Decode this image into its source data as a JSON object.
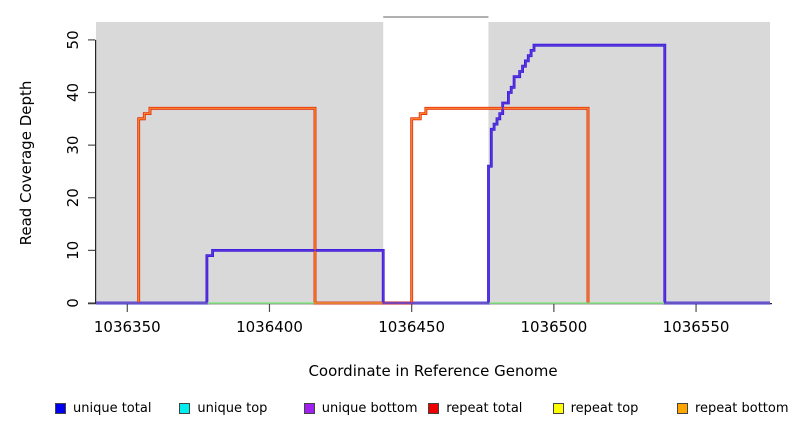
{
  "chart_data": {
    "type": "line",
    "title": "",
    "xlabel": "Coordinate in Reference Genome",
    "ylabel": "Read Coverage Depth",
    "xlim": [
      1036339,
      1036576
    ],
    "ylim": [
      0,
      53.4
    ],
    "x_ticks": [
      1036350,
      1036400,
      1036450,
      1036500,
      1036550
    ],
    "y_ticks": [
      0,
      10,
      20,
      30,
      40,
      50
    ],
    "grid": false,
    "legend_position": "bottom",
    "plot_background": "#d9d9d9",
    "highlight_region": {
      "x": [
        1036440,
        1036477
      ],
      "color": "#ffffff",
      "border_top_color": "#808080"
    },
    "series": [
      {
        "name": "unique total",
        "color": "#0000ee",
        "stroke": "#2a18dd",
        "width": 2.8,
        "points": [
          [
            1036339,
            0
          ],
          [
            1036378,
            0
          ],
          [
            1036378,
            9
          ],
          [
            1036380,
            9
          ],
          [
            1036380,
            10
          ],
          [
            1036440,
            10
          ],
          [
            1036440,
            0
          ],
          [
            1036477,
            0
          ],
          [
            1036477,
            26
          ],
          [
            1036478,
            26
          ],
          [
            1036478,
            33
          ],
          [
            1036479,
            33
          ],
          [
            1036479,
            34
          ],
          [
            1036480,
            34
          ],
          [
            1036480,
            35
          ],
          [
            1036481,
            35
          ],
          [
            1036481,
            36
          ],
          [
            1036482,
            36
          ],
          [
            1036482,
            38
          ],
          [
            1036484,
            38
          ],
          [
            1036484,
            40
          ],
          [
            1036485,
            40
          ],
          [
            1036485,
            41
          ],
          [
            1036486,
            41
          ],
          [
            1036486,
            43
          ],
          [
            1036488,
            43
          ],
          [
            1036488,
            44
          ],
          [
            1036489,
            44
          ],
          [
            1036489,
            45
          ],
          [
            1036490,
            45
          ],
          [
            1036490,
            46
          ],
          [
            1036491,
            46
          ],
          [
            1036491,
            47
          ],
          [
            1036492,
            47
          ],
          [
            1036492,
            48
          ],
          [
            1036493,
            48
          ],
          [
            1036493,
            49
          ],
          [
            1036539,
            49
          ],
          [
            1036539,
            0
          ],
          [
            1036576,
            0
          ]
        ]
      },
      {
        "name": "repeat top",
        "color": "#ffff00",
        "stroke": "#ffff00",
        "width": 1.5,
        "points": [
          [
            1036339,
            0
          ],
          [
            1036576,
            0
          ]
        ]
      },
      {
        "name": "repeat total",
        "color": "#ee0000",
        "stroke": "#dd1100",
        "width": 2.8,
        "points": [
          [
            1036354,
            0
          ],
          [
            1036354,
            35
          ],
          [
            1036356,
            35
          ],
          [
            1036356,
            36
          ],
          [
            1036358,
            36
          ],
          [
            1036358,
            37
          ],
          [
            1036416,
            37
          ],
          [
            1036416,
            0
          ],
          [
            1036450,
            0
          ],
          [
            1036450,
            35
          ],
          [
            1036453,
            35
          ],
          [
            1036453,
            36
          ],
          [
            1036455,
            36
          ],
          [
            1036455,
            37
          ],
          [
            1036512,
            37
          ],
          [
            1036512,
            0
          ]
        ]
      },
      {
        "name": "unique top",
        "color": "#00eeee",
        "stroke": "#7fdfa6",
        "width": 1.5,
        "points": [
          [
            1036339,
            0
          ],
          [
            1036576,
            0
          ]
        ]
      },
      {
        "name": "repeat bottom",
        "color": "#ffa500",
        "stroke": "#f98026",
        "width": 1.6,
        "points": [
          [
            1036354,
            0
          ],
          [
            1036354,
            35
          ],
          [
            1036356,
            35
          ],
          [
            1036356,
            36
          ],
          [
            1036358,
            36
          ],
          [
            1036358,
            37
          ],
          [
            1036416,
            37
          ],
          [
            1036416,
            0
          ],
          [
            1036450,
            0
          ],
          [
            1036450,
            35
          ],
          [
            1036453,
            35
          ],
          [
            1036453,
            36
          ],
          [
            1036455,
            36
          ],
          [
            1036455,
            37
          ],
          [
            1036512,
            37
          ],
          [
            1036512,
            0
          ]
        ]
      },
      {
        "name": "unique bottom",
        "color": "#a020f0",
        "stroke": "#5c30da",
        "width": 1.6,
        "points": [
          [
            1036339,
            0
          ],
          [
            1036378,
            0
          ],
          [
            1036378,
            9
          ],
          [
            1036380,
            9
          ],
          [
            1036380,
            10
          ],
          [
            1036440,
            10
          ],
          [
            1036440,
            0
          ],
          [
            1036477,
            0
          ],
          [
            1036477,
            26
          ],
          [
            1036478,
            26
          ],
          [
            1036478,
            33
          ],
          [
            1036479,
            33
          ],
          [
            1036479,
            34
          ],
          [
            1036480,
            34
          ],
          [
            1036480,
            35
          ],
          [
            1036481,
            35
          ],
          [
            1036481,
            36
          ],
          [
            1036482,
            36
          ],
          [
            1036482,
            38
          ],
          [
            1036484,
            38
          ],
          [
            1036484,
            40
          ],
          [
            1036485,
            40
          ],
          [
            1036485,
            41
          ],
          [
            1036486,
            41
          ],
          [
            1036486,
            43
          ],
          [
            1036488,
            43
          ],
          [
            1036488,
            44
          ],
          [
            1036489,
            44
          ],
          [
            1036489,
            45
          ],
          [
            1036490,
            45
          ],
          [
            1036490,
            46
          ],
          [
            1036491,
            46
          ],
          [
            1036491,
            47
          ],
          [
            1036492,
            47
          ],
          [
            1036492,
            48
          ],
          [
            1036493,
            48
          ],
          [
            1036493,
            49
          ],
          [
            1036539,
            49
          ],
          [
            1036539,
            0
          ],
          [
            1036576,
            0
          ]
        ]
      }
    ]
  },
  "legend": {
    "items": [
      {
        "label": "unique total",
        "color": "#0000ee"
      },
      {
        "label": "unique top",
        "color": "#00eeee"
      },
      {
        "label": "unique bottom",
        "color": "#a020f0"
      },
      {
        "label": "repeat total",
        "color": "#ee0000"
      },
      {
        "label": "repeat top",
        "color": "#ffff00"
      },
      {
        "label": "repeat bottom",
        "color": "#ffa500"
      }
    ]
  }
}
